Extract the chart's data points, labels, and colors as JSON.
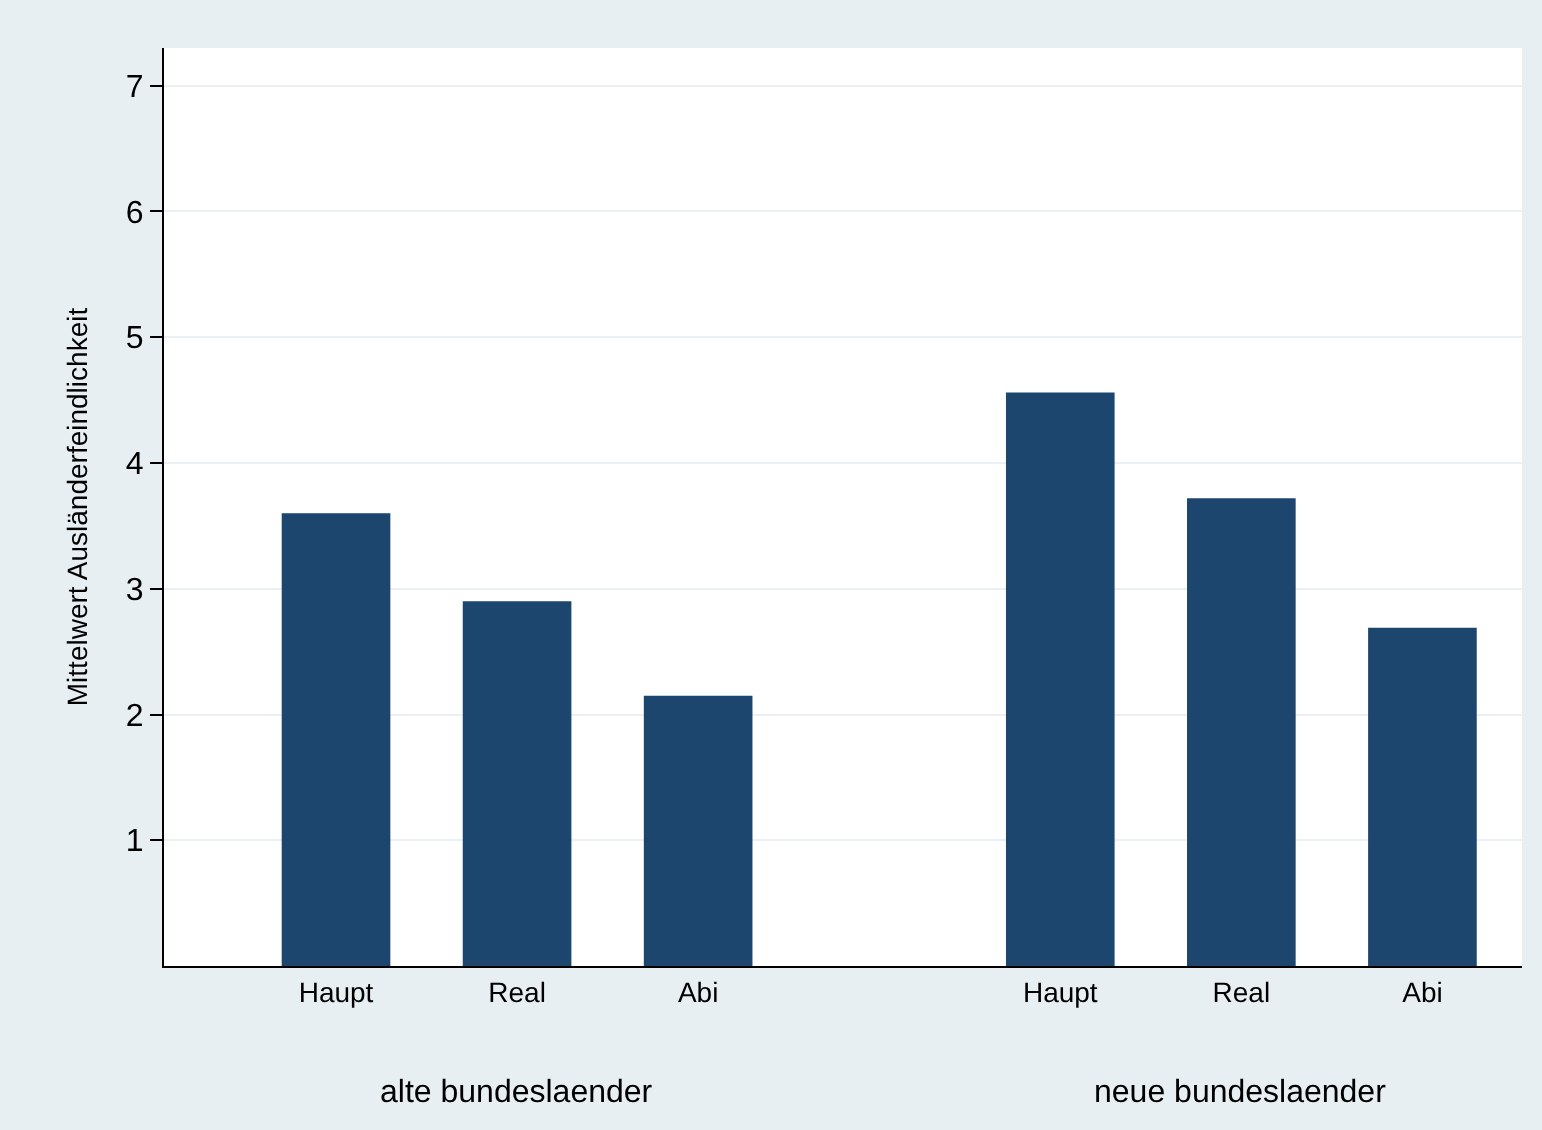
{
  "chart_data": {
    "type": "bar",
    "ylabel": "Mittelwert Ausländerfeindlichkeit",
    "categories": [
      "Haupt",
      "Real",
      "Abi",
      null,
      "Haupt",
      "Real",
      "Abi"
    ],
    "values": [
      3.6,
      2.9,
      2.15,
      null,
      4.56,
      3.72,
      2.69
    ],
    "color": "#1c466e",
    "ylim": [
      0,
      7.3
    ],
    "yticks": [
      1,
      2,
      3,
      4,
      5,
      6,
      7
    ],
    "grid": "y",
    "annotations": [
      "alte bundeslaender",
      "neue bundeslaender"
    ]
  }
}
